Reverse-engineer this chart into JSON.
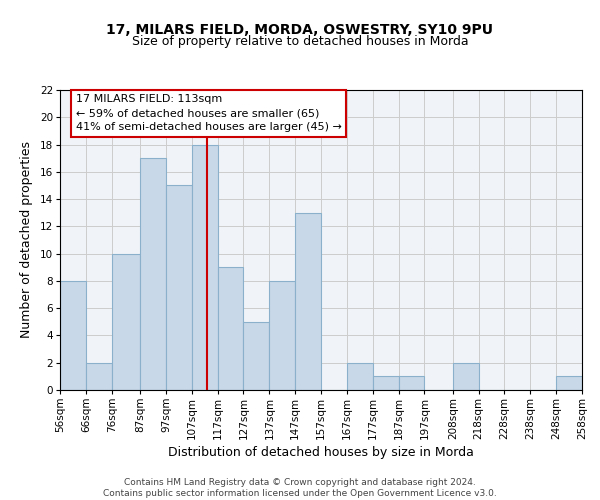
{
  "title": "17, MILARS FIELD, MORDA, OSWESTRY, SY10 9PU",
  "subtitle": "Size of property relative to detached houses in Morda",
  "xlabel": "Distribution of detached houses by size in Morda",
  "ylabel": "Number of detached properties",
  "bin_edges": [
    56,
    66,
    76,
    87,
    97,
    107,
    117,
    127,
    137,
    147,
    157,
    167,
    177,
    187,
    197,
    208,
    218,
    228,
    238,
    248,
    258
  ],
  "bar_heights": [
    8,
    2,
    10,
    17,
    15,
    18,
    9,
    5,
    8,
    13,
    0,
    2,
    1,
    1,
    0,
    2,
    0,
    0,
    0,
    1
  ],
  "bar_color": "#c8d8e8",
  "bar_edge_color": "#8ab0cc",
  "vline_x": 113,
  "vline_color": "#cc0000",
  "annotation_title": "17 MILARS FIELD: 113sqm",
  "annotation_line1": "← 59% of detached houses are smaller (65)",
  "annotation_line2": "41% of semi-detached houses are larger (45) →",
  "ylim": [
    0,
    22
  ],
  "yticks": [
    0,
    2,
    4,
    6,
    8,
    10,
    12,
    14,
    16,
    18,
    20,
    22
  ],
  "tick_labels": [
    "56sqm",
    "66sqm",
    "76sqm",
    "87sqm",
    "97sqm",
    "107sqm",
    "117sqm",
    "127sqm",
    "137sqm",
    "147sqm",
    "157sqm",
    "167sqm",
    "177sqm",
    "187sqm",
    "197sqm",
    "208sqm",
    "218sqm",
    "228sqm",
    "238sqm",
    "248sqm",
    "258sqm"
  ],
  "footer1": "Contains HM Land Registry data © Crown copyright and database right 2024.",
  "footer2": "Contains public sector information licensed under the Open Government Licence v3.0.",
  "annotation_box_color": "#ffffff",
  "annotation_box_edge": "#cc0000",
  "title_fontsize": 10,
  "subtitle_fontsize": 9,
  "axis_label_fontsize": 9,
  "tick_fontsize": 7.5,
  "annotation_fontsize": 8,
  "footer_fontsize": 6.5
}
